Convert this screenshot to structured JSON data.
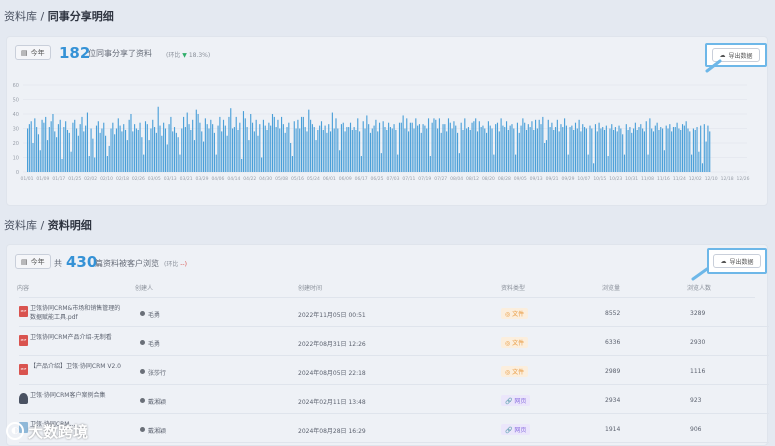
{
  "section1": {
    "breadcrumb_root": "资料库 / ",
    "breadcrumb_current": "同事分享明细",
    "period_label": "今年",
    "count": "182",
    "count_desc": "位同事分享了资料",
    "compare_prefix": "(环比",
    "compare_value": "18.3%)",
    "export_label": "导出数据"
  },
  "section2": {
    "breadcrumb_root": "资料库 / ",
    "breadcrumb_current": "资料明细",
    "period_label": "今年",
    "count_prefix": "共",
    "count": "430",
    "count_desc": "篇资料被客户浏览",
    "compare_prefix": "(环比",
    "compare_value": "--)",
    "export_label": "导出数据",
    "columns": [
      "内容",
      "创建人",
      "创建时间",
      "资料类型",
      "浏览量",
      "浏览人数"
    ],
    "rows": [
      {
        "title": "卫瓴协同CRM&市场和销售管理的数据赋能工具.pdf",
        "creator": "毛勇",
        "created": "2022年11月05日 00:51",
        "type": "文件",
        "type_kind": "file",
        "views": "8552",
        "viewers": "3289",
        "icon": "pdf-icon"
      },
      {
        "title": "卫瓴协同CRM产品介绍-无制看",
        "creator": "毛勇",
        "created": "2022年08月31日 12:26",
        "type": "文件",
        "type_kind": "file",
        "views": "6336",
        "viewers": "2930",
        "icon": "pdf-icon"
      },
      {
        "title": "【产品介绍】卫瓴·协同CRM V2.0",
        "creator": "张莎行",
        "created": "2024年08月05日 22:18",
        "type": "文件",
        "type_kind": "file",
        "views": "2989",
        "viewers": "1116",
        "icon": "pdf-icon"
      },
      {
        "title": "卫瓴·协同CRM客户案例合集",
        "creator": "戴湘颖",
        "created": "2024年02月11日 13:48",
        "type": "网页",
        "type_kind": "page",
        "views": "2934",
        "viewers": "923",
        "icon": "person-icon"
      },
      {
        "title": "卫瓴·协同CRM…",
        "creator": "戴湘颖",
        "created": "2024年08月28日 16:29",
        "type": "网页",
        "type_kind": "page",
        "views": "1914",
        "viewers": "906",
        "icon": "image-icon"
      }
    ]
  },
  "watermark": "大数跨境",
  "chart_data": {
    "type": "bar",
    "ylim": [
      0,
      60
    ],
    "y_ticks": [
      "0",
      "10",
      "20",
      "30",
      "40",
      "50",
      "60"
    ],
    "x_ticks": [
      "01/01",
      "01/09",
      "01/17",
      "01/25",
      "02/02",
      "02/10",
      "02/18",
      "02/26",
      "03/05",
      "03/13",
      "03/21",
      "03/29",
      "04/06",
      "04/14",
      "04/22",
      "04/30",
      "05/08",
      "05/16",
      "05/24",
      "06/01",
      "06/09",
      "06/17",
      "06/25",
      "07/03",
      "07/11",
      "07/19",
      "07/27",
      "08/04",
      "08/12",
      "08/20",
      "08/28",
      "09/05",
      "09/13",
      "09/21",
      "09/29",
      "10/07",
      "10/15",
      "10/23",
      "10/31",
      "11/08",
      "11/16",
      "11/24",
      "12/02",
      "12/10",
      "12/18",
      "12/26"
    ],
    "values": [
      30,
      33,
      35,
      20,
      37,
      31,
      26,
      15,
      36,
      34,
      38,
      22,
      31,
      35,
      40,
      28,
      24,
      33,
      36,
      9,
      31,
      35,
      29,
      27,
      14,
      34,
      36,
      30,
      25,
      33,
      38,
      28,
      32,
      41,
      11,
      30,
      23,
      10,
      32,
      35,
      27,
      30,
      34,
      25,
      11,
      18,
      30,
      34,
      26,
      30,
      37,
      32,
      28,
      33,
      29,
      22,
      36,
      40,
      28,
      33,
      30,
      29,
      34,
      24,
      12,
      35,
      33,
      22,
      30,
      36,
      31,
      27,
      45,
      32,
      25,
      34,
      30,
      19,
      33,
      38,
      28,
      31,
      27,
      24,
      12,
      30,
      38,
      31,
      41,
      33,
      29,
      36,
      22,
      43,
      40,
      34,
      28,
      21,
      37,
      33,
      30,
      36,
      33,
      27,
      12,
      32,
      38,
      28,
      36,
      32,
      25,
      38,
      44,
      30,
      31,
      38,
      29,
      34,
      9,
      42,
      37,
      31,
      22,
      40,
      34,
      28,
      36,
      25,
      33,
      10,
      36,
      32,
      29,
      34,
      32,
      40,
      38,
      31,
      36,
      30,
      38,
      33,
      27,
      31,
      34,
      20,
      11,
      35,
      30,
      36,
      30,
      38,
      38,
      31,
      28,
      43,
      36,
      33,
      31,
      22,
      29,
      32,
      35,
      29,
      32,
      27,
      33,
      28,
      41,
      30,
      37,
      30,
      15,
      33,
      34,
      28,
      31,
      31,
      34,
      29,
      31,
      29,
      37,
      28,
      11,
      35,
      30,
      39,
      33,
      27,
      30,
      32,
      36,
      28,
      34,
      13,
      35,
      31,
      29,
      34,
      31,
      30,
      33,
      29,
      12,
      34,
      34,
      39,
      30,
      37,
      28,
      34,
      34,
      30,
      37,
      32,
      33,
      27,
      33,
      32,
      30,
      37,
      11,
      34,
      37,
      36,
      30,
      37,
      27,
      33,
      33,
      28,
      37,
      34,
      30,
      35,
      32,
      27,
      13,
      34,
      29,
      37,
      30,
      31,
      29,
      34,
      35,
      37,
      28,
      35,
      31,
      32,
      30,
      27,
      35,
      32,
      30,
      12,
      33,
      34,
      28,
      37,
      32,
      31,
      35,
      29,
      32,
      33,
      30,
      12,
      34,
      27,
      32,
      37,
      34,
      29,
      33,
      31,
      35,
      29,
      36,
      30,
      36,
      33,
      38,
      20,
      22,
      36,
      31,
      34,
      29,
      31,
      36,
      28,
      33,
      31,
      37,
      32,
      12,
      31,
      32,
      29,
      34,
      30,
      36,
      28,
      33,
      31,
      30,
      12,
      32,
      30,
      6,
      33,
      28,
      34,
      30,
      31,
      29,
      32,
      11,
      30,
      33,
      29,
      31,
      28,
      32,
      30,
      26,
      12,
      33,
      29,
      31,
      27,
      30,
      34,
      29,
      31,
      33,
      30,
      28,
      35,
      12,
      37,
      30,
      28,
      32,
      34,
      29,
      31,
      30,
      15,
      32,
      30,
      33,
      28,
      31,
      31,
      34,
      30,
      29,
      33,
      32,
      35,
      30,
      28,
      12,
      30,
      29,
      31,
      14,
      32,
      6,
      33,
      21,
      32,
      28
    ]
  }
}
